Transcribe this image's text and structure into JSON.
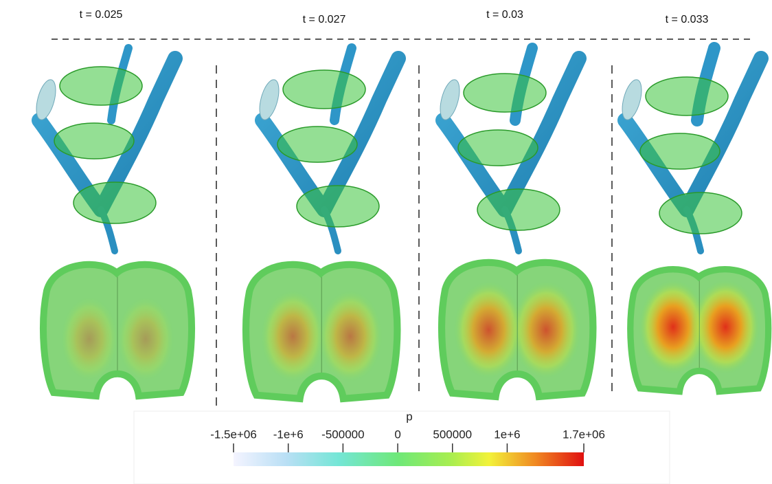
{
  "panels": [
    {
      "title": "t = 0.025"
    },
    {
      "title": "t = 0.027"
    },
    {
      "title": "t = 0.03"
    },
    {
      "title": "t = 0.033"
    }
  ],
  "colorbar": {
    "label": "p",
    "range": [
      -1500000,
      1700000
    ],
    "ticks": [
      {
        "value": -1500000,
        "label": "-1.5e+06"
      },
      {
        "value": -1000000,
        "label": "-1e+6"
      },
      -500000,
      0,
      500000,
      {
        "value": 1000000,
        "label": "1e+6"
      },
      {
        "value": 1700000,
        "label": "1.7e+06"
      }
    ]
  }
}
